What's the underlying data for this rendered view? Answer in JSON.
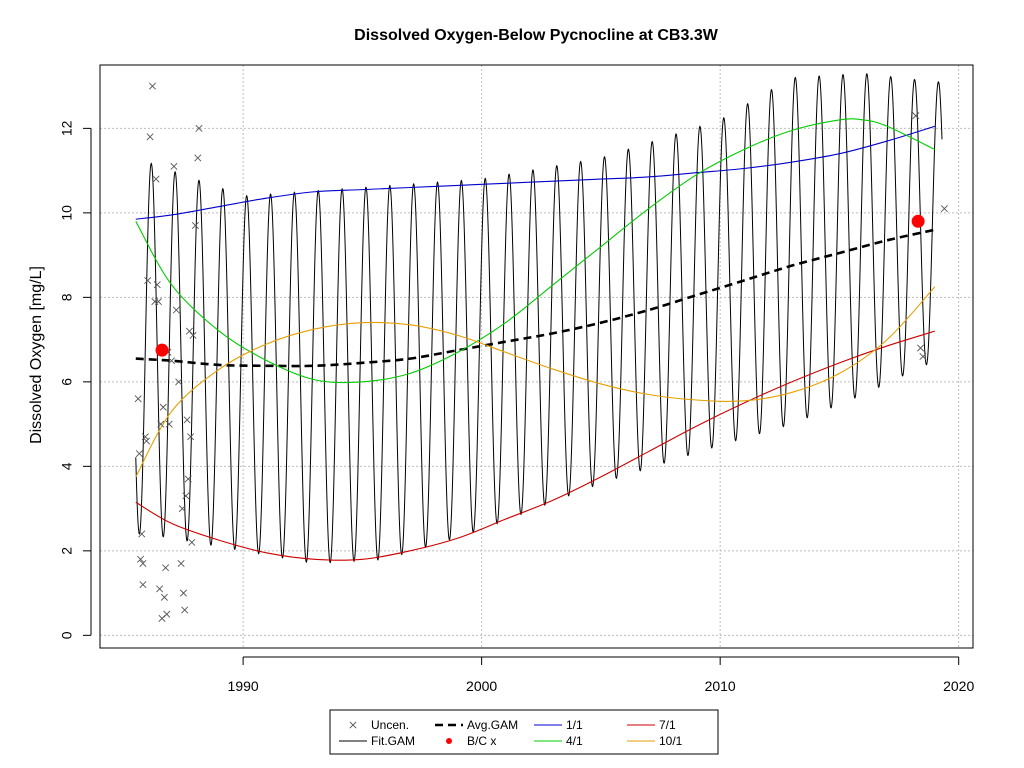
{
  "chart_data": {
    "type": "line",
    "title": "Dissolved Oxygen-Below Pycnocline at CB3.3W",
    "xlabel": "",
    "ylabel": "Dissolved Oxygen [mg/L]",
    "xlim": [
      1984.0,
      2020.6
    ],
    "ylim": [
      -0.3,
      13.5
    ],
    "x_ticks": [
      1990,
      2000,
      2010,
      2020
    ],
    "y_ticks": [
      0,
      2,
      4,
      6,
      8,
      10,
      12
    ],
    "grid": true,
    "legend_position": "bottom-center",
    "legend": [
      {
        "key": "uncen",
        "label": "Uncen."
      },
      {
        "key": "fit",
        "label": "Fit.GAM"
      },
      {
        "key": "avg",
        "label": "Avg.GAM"
      },
      {
        "key": "bc",
        "label": "B/C x"
      },
      {
        "key": "jan",
        "label": "1/1"
      },
      {
        "key": "apr",
        "label": "4/1"
      },
      {
        "key": "jul",
        "label": "7/1"
      },
      {
        "key": "oct",
        "label": "10/1"
      }
    ],
    "colors": {
      "uncen": "#555555",
      "fit": "#000000",
      "avg": "#000000",
      "bc": "#ff0000",
      "jan": "#0000cc",
      "apr": "#00cc00",
      "jul": "#cc0000",
      "oct": "#e69f00",
      "grid": "#bdbdbd"
    },
    "fit_gam": {
      "x_start": 1985.5,
      "x_end": 2019.3,
      "phase": 1986.15,
      "period": 1.0,
      "peaks": [
        [
          1986.0,
          11.2
        ],
        [
          1990.0,
          10.4
        ],
        [
          1995.0,
          10.6
        ],
        [
          2000.0,
          10.8
        ],
        [
          2005.0,
          11.3
        ],
        [
          2010.0,
          12.2
        ],
        [
          2013.0,
          13.2
        ],
        [
          2016.0,
          13.3
        ],
        [
          2019.0,
          13.1
        ]
      ],
      "troughs": [
        [
          1986.0,
          2.4
        ],
        [
          1990.0,
          2.0
        ],
        [
          1993.0,
          1.7
        ],
        [
          1996.0,
          1.8
        ],
        [
          2000.0,
          2.5
        ],
        [
          2005.0,
          3.6
        ],
        [
          2010.0,
          4.5
        ],
        [
          2013.0,
          5.0
        ],
        [
          2016.0,
          5.7
        ],
        [
          2019.0,
          6.5
        ]
      ]
    },
    "series": [
      {
        "key": "avg",
        "name": "Avg.GAM",
        "x": [
          1985.5,
          1987,
          1989,
          1991,
          1993,
          1995,
          1997,
          1999,
          2001,
          2003,
          2005,
          2007,
          2009,
          2011,
          2013,
          2015,
          2017,
          2019
        ],
        "y": [
          6.55,
          6.5,
          6.4,
          6.38,
          6.38,
          6.45,
          6.55,
          6.75,
          6.95,
          7.15,
          7.4,
          7.7,
          8.05,
          8.4,
          8.75,
          9.05,
          9.35,
          9.6
        ]
      },
      {
        "key": "jan",
        "name": "1/1",
        "x": [
          1985.5,
          1987,
          1989,
          1991,
          1993,
          1995,
          1997,
          1999,
          2001,
          2003,
          2005,
          2007,
          2009,
          2011,
          2013,
          2015,
          2017,
          2019
        ],
        "y": [
          9.85,
          9.95,
          10.15,
          10.35,
          10.5,
          10.55,
          10.6,
          10.65,
          10.7,
          10.75,
          10.8,
          10.85,
          10.95,
          11.05,
          11.2,
          11.4,
          11.7,
          12.05
        ]
      },
      {
        "key": "apr",
        "name": "4/1",
        "x": [
          1985.5,
          1987,
          1989,
          1991,
          1993,
          1995,
          1997,
          1999,
          2001,
          2003,
          2005,
          2007,
          2009,
          2011,
          2013,
          2015,
          2016,
          2017,
          2019
        ],
        "y": [
          9.8,
          8.3,
          7.2,
          6.5,
          6.05,
          6.0,
          6.2,
          6.7,
          7.4,
          8.3,
          9.2,
          10.1,
          10.9,
          11.5,
          11.95,
          12.2,
          12.2,
          12.05,
          11.5
        ]
      },
      {
        "key": "jul",
        "name": "7/1",
        "x": [
          1985.5,
          1987,
          1989,
          1991,
          1993,
          1995,
          1997,
          1999,
          2001,
          2003,
          2005,
          2007,
          2009,
          2011,
          2013,
          2015,
          2017,
          2019
        ],
        "y": [
          3.15,
          2.65,
          2.25,
          1.95,
          1.8,
          1.8,
          2.0,
          2.3,
          2.75,
          3.2,
          3.75,
          4.35,
          4.95,
          5.5,
          6.0,
          6.45,
          6.85,
          7.2
        ]
      },
      {
        "key": "oct",
        "name": "10/1",
        "x": [
          1985.5,
          1987,
          1989,
          1991,
          1993,
          1995,
          1997,
          1999,
          2001,
          2003,
          2005,
          2007,
          2009,
          2011,
          2013,
          2015,
          2017,
          2019
        ],
        "y": [
          3.75,
          5.3,
          6.3,
          6.9,
          7.25,
          7.4,
          7.35,
          7.1,
          6.7,
          6.3,
          5.95,
          5.7,
          5.57,
          5.55,
          5.75,
          6.2,
          7.0,
          8.25
        ]
      }
    ],
    "observations": {
      "key": "uncen",
      "name": "Uncen.",
      "x": [
        1985.6,
        1985.7,
        1985.8,
        1985.9,
        1986.0,
        1986.1,
        1986.2,
        1986.3,
        1986.35,
        1986.4,
        1986.5,
        1986.6,
        1986.65,
        1986.7,
        1986.75,
        1986.8,
        1986.9,
        1987.0,
        1987.1,
        1987.2,
        1987.3,
        1987.4,
        1987.5,
        1987.55,
        1987.6,
        1987.7,
        1987.8,
        1987.85,
        1987.9,
        1988.0,
        1988.1,
        1988.15,
        1985.65,
        1985.75,
        1985.95,
        1986.45,
        1986.55,
        1987.45,
        1987.65,
        1985.8,
        1987.75,
        1986.85,
        2018.2,
        2018.4,
        2018.5,
        2019.4
      ],
      "y": [
        5.6,
        1.8,
        1.2,
        4.7,
        8.4,
        11.8,
        13.0,
        7.9,
        10.8,
        8.3,
        1.1,
        0.4,
        5.4,
        0.9,
        1.6,
        0.5,
        5.0,
        6.5,
        11.1,
        7.7,
        6.0,
        1.7,
        1.0,
        0.6,
        3.3,
        3.7,
        4.7,
        2.2,
        7.1,
        9.7,
        11.3,
        12.0,
        4.3,
        2.4,
        4.6,
        7.9,
        5.0,
        3.0,
        5.1,
        1.7,
        7.2,
        6.7,
        12.3,
        6.8,
        6.6,
        10.1
      ]
    },
    "bc_points": {
      "key": "bc",
      "name": "B/C x",
      "x": [
        1986.6,
        2018.3
      ],
      "y": [
        6.75,
        9.8
      ]
    }
  }
}
